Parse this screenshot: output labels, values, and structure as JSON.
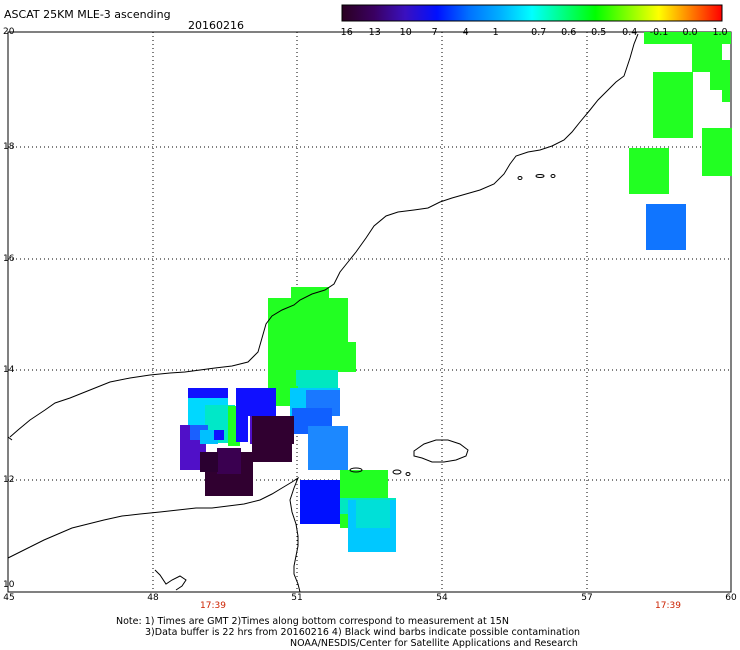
{
  "header": {
    "title": "ASCAT 25KM MLE-3 ascending",
    "date": "20160216"
  },
  "colorbar": {
    "labels": [
      "-16",
      "-13",
      "-10",
      "-7",
      "-4",
      "-1",
      "-0.7",
      "-0.6",
      "-0.5",
      "-0.4",
      "-0.1",
      "0.0",
      "1.0"
    ],
    "colors": [
      "#2a0020",
      "#3a0060",
      "#3a10c0",
      "#0010ff",
      "#0070ff",
      "#00b0ff",
      "#00ffff",
      "#00ff80",
      "#00ff00",
      "#80ff00",
      "#ffff00",
      "#ff8000",
      "#ff0000"
    ]
  },
  "axes": {
    "lat_labels": [
      "20",
      "18",
      "16",
      "14",
      "12",
      "10"
    ],
    "lon_labels": [
      "45",
      "48",
      "51",
      "54",
      "57",
      "60"
    ],
    "times": [
      "17:39",
      "17:39"
    ]
  },
  "notes": {
    "line1": "Note: 1) Times are GMT 2)Times along bottom correspond to measurement at 15N",
    "line2": "3)Data buffer is 22 hrs from 20160216 4) Black wind barbs indicate possible contamination",
    "line3": "NOAA/NESDIS/Center for Satellite Applications and Research"
  }
}
